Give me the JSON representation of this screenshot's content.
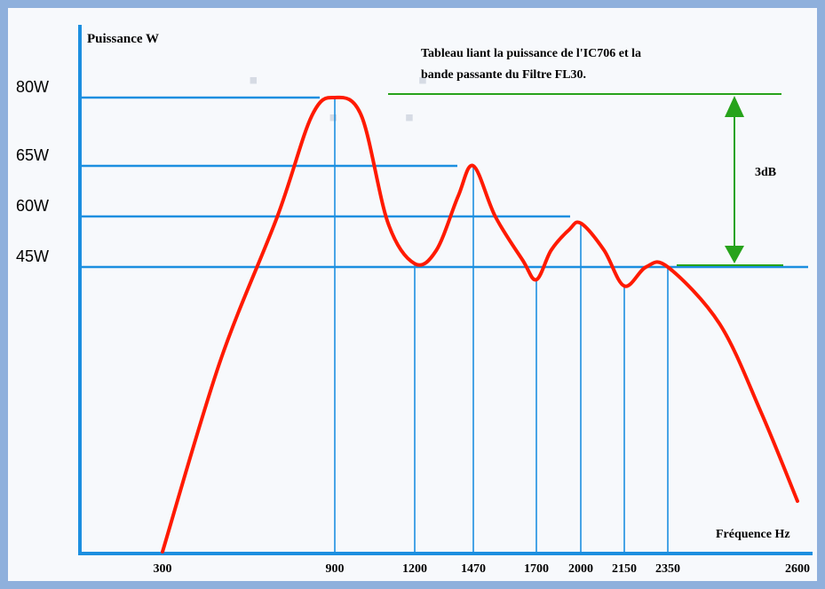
{
  "chart_data": {
    "type": "line",
    "title": "Tableau liant la puissance de l'IC706 et la bande passante du Filtre FL30.",
    "title_lines": [
      "Tableau liant la puissance de l'IC706 et la",
      "bande passante du Filtre FL30."
    ],
    "ylabel": "Puissance W",
    "xlabel": "Fréquence Hz",
    "x_ticks": [
      300,
      900,
      1200,
      1470,
      1700,
      2000,
      2150,
      2350,
      2600
    ],
    "y_ticks": [
      {
        "value": 80,
        "label": "80W"
      },
      {
        "value": 65,
        "label": "65W"
      },
      {
        "value": 60,
        "label": "60W"
      },
      {
        "value": 45,
        "label": "45W"
      }
    ],
    "annotation": {
      "label": "3dB",
      "from": 45,
      "to": 80
    },
    "series": [
      {
        "color": "#ff1a00",
        "points": [
          [
            300,
            0
          ],
          [
            500,
            30
          ],
          [
            700,
            60
          ],
          [
            820,
            76
          ],
          [
            900,
            80
          ],
          [
            1000,
            76
          ],
          [
            1100,
            58
          ],
          [
            1200,
            46
          ],
          [
            1300,
            50
          ],
          [
            1400,
            62
          ],
          [
            1470,
            65
          ],
          [
            1550,
            60
          ],
          [
            1650,
            47
          ],
          [
            1700,
            43
          ],
          [
            1800,
            50
          ],
          [
            1920,
            56
          ],
          [
            2000,
            58
          ],
          [
            2080,
            50
          ],
          [
            2150,
            42
          ],
          [
            2250,
            45
          ],
          [
            2350,
            45
          ],
          [
            2450,
            36
          ],
          [
            2530,
            22
          ],
          [
            2600,
            8
          ]
        ]
      }
    ],
    "colors": {
      "curve": "#ff1a00",
      "guides": "#1c8fe0",
      "axis": "#1c8fe0",
      "bracket": "#27a31b"
    }
  }
}
